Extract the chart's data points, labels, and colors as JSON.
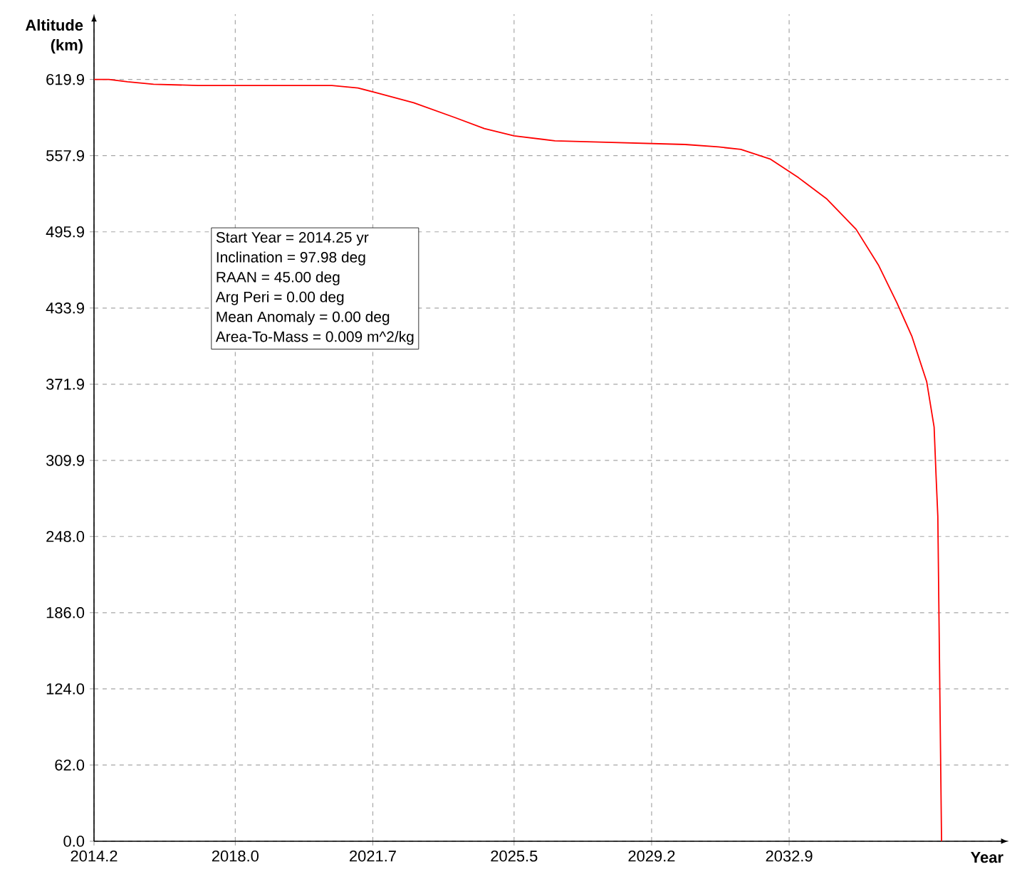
{
  "chart_data": {
    "type": "line",
    "xlabel": "Year",
    "ylabel": "Altitude (km)",
    "xlim": [
      2014.2,
      2038.8
    ],
    "ylim": [
      0,
      673
    ],
    "xticks": [
      {
        "value": 2014.2,
        "label": "2014.2"
      },
      {
        "value": 2018.0,
        "label": "2018.0"
      },
      {
        "value": 2021.7,
        "label": "2021.7"
      },
      {
        "value": 2025.5,
        "label": "2025.5"
      },
      {
        "value": 2029.2,
        "label": "2029.2"
      },
      {
        "value": 2032.9,
        "label": "2032.9"
      }
    ],
    "yticks": [
      {
        "value": 0.0,
        "label": "0.0"
      },
      {
        "value": 62.0,
        "label": "62.0"
      },
      {
        "value": 124.0,
        "label": "124.0"
      },
      {
        "value": 186.0,
        "label": "186.0"
      },
      {
        "value": 248.0,
        "label": "248.0"
      },
      {
        "value": 309.9,
        "label": "309.9"
      },
      {
        "value": 371.9,
        "label": "371.9"
      },
      {
        "value": 433.9,
        "label": "433.9"
      },
      {
        "value": 495.9,
        "label": "495.9"
      },
      {
        "value": 557.9,
        "label": "557.9"
      },
      {
        "value": 619.9,
        "label": "619.9"
      }
    ],
    "grid": true,
    "series": [
      {
        "color": "#ff0000",
        "x": [
          2014.2,
          2014.6,
          2015.1,
          2015.8,
          2017.0,
          2020.6,
          2021.3,
          2021.8,
          2022.8,
          2023.9,
          2024.7,
          2025.5,
          2026.6,
          2027.8,
          2030.1,
          2031.0,
          2031.6,
          2032.4,
          2033.15,
          2033.9,
          2034.7,
          2035.3,
          2035.8,
          2036.2,
          2036.6,
          2036.8,
          2036.85,
          2036.9,
          2037.0
        ],
        "values": [
          619.9,
          619.9,
          618,
          616,
          615,
          615,
          613,
          609,
          601,
          589,
          580,
          574,
          570,
          569,
          567,
          565,
          563,
          555,
          540,
          523,
          498,
          469,
          438,
          411,
          374,
          337,
          299,
          264,
          0
        ]
      }
    ],
    "annotations": [
      "Start Year = 2014.25 yr",
      "Inclination = 97.98 deg",
      "RAAN = 45.00 deg",
      "Arg Peri = 0.00 deg",
      "Mean Anomaly = 0.00 deg",
      "Area-To-Mass = 0.009 m^2/kg"
    ]
  }
}
